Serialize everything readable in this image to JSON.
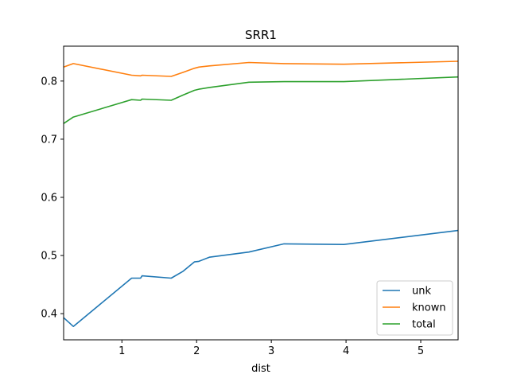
{
  "chart_data": {
    "type": "line",
    "title": "SRR1",
    "xlabel": "dist",
    "ylabel": "",
    "xlim": [
      0.22,
      5.5
    ],
    "ylim": [
      0.355,
      0.86
    ],
    "xticks": [
      1,
      2,
      3,
      4,
      5
    ],
    "yticks": [
      0.4,
      0.5,
      0.6,
      0.7,
      0.8
    ],
    "xtick_labels": [
      "1",
      "2",
      "3",
      "4",
      "5"
    ],
    "ytick_labels": [
      "0.4",
      "0.5",
      "0.6",
      "0.7",
      "0.8"
    ],
    "legend_position": "lower-right",
    "series": [
      {
        "name": "unk",
        "color": "#1f77b4",
        "x": [
          0.22,
          0.35,
          1.13,
          1.25,
          1.27,
          1.66,
          1.82,
          1.97,
          2.03,
          2.17,
          2.7,
          3.17,
          3.97,
          5.5
        ],
        "y": [
          0.393,
          0.378,
          0.461,
          0.461,
          0.465,
          0.461,
          0.473,
          0.489,
          0.49,
          0.497,
          0.506,
          0.52,
          0.519,
          0.543
        ]
      },
      {
        "name": "known",
        "color": "#ff7f0e",
        "x": [
          0.22,
          0.35,
          1.13,
          1.25,
          1.27,
          1.66,
          1.82,
          1.97,
          2.03,
          2.17,
          2.7,
          3.17,
          3.97,
          5.5
        ],
        "y": [
          0.824,
          0.83,
          0.81,
          0.809,
          0.81,
          0.808,
          0.815,
          0.822,
          0.824,
          0.826,
          0.832,
          0.83,
          0.829,
          0.834
        ]
      },
      {
        "name": "total",
        "color": "#2ca02c",
        "x": [
          0.22,
          0.35,
          1.13,
          1.25,
          1.27,
          1.66,
          1.82,
          1.97,
          2.03,
          2.17,
          2.7,
          3.17,
          3.97,
          5.5
        ],
        "y": [
          0.727,
          0.738,
          0.768,
          0.767,
          0.769,
          0.767,
          0.776,
          0.784,
          0.786,
          0.789,
          0.798,
          0.799,
          0.799,
          0.807
        ]
      }
    ]
  }
}
